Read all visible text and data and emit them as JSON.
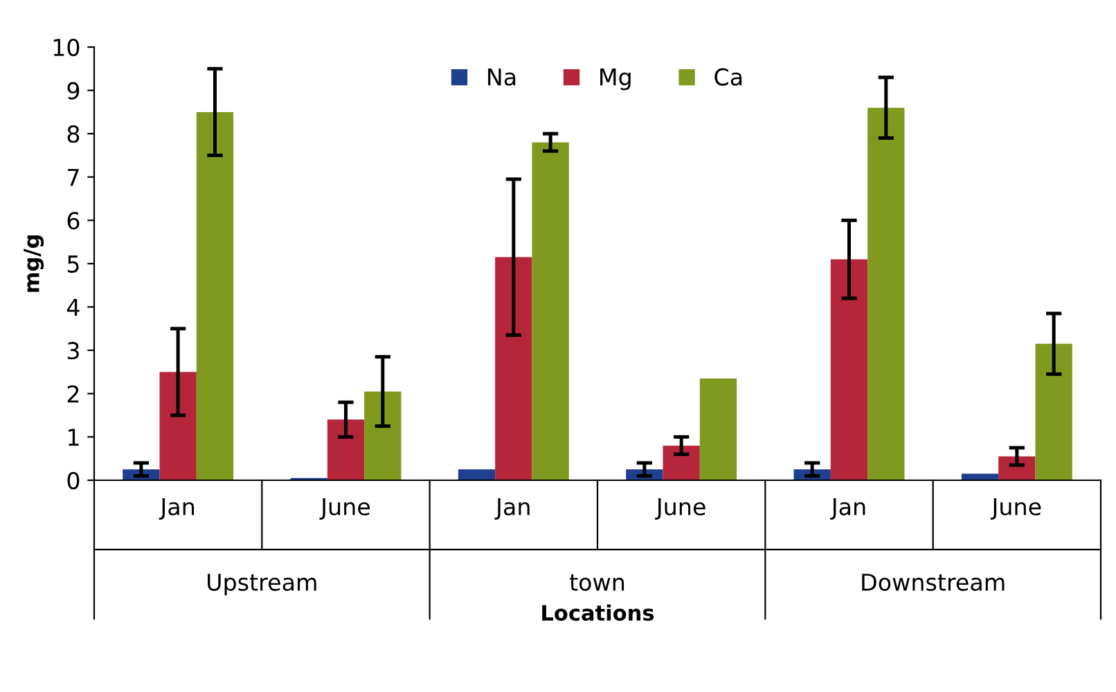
{
  "chart_data": {
    "type": "bar",
    "xlabel": "Locations",
    "ylabel": "mg/g",
    "categories": [
      "Jan",
      "June",
      "Jan",
      "June",
      "Jan",
      "June"
    ],
    "annotations": [
      "Upstream",
      "town",
      "Downstream"
    ],
    "series": [
      {
        "name": "Na",
        "color": "#1f3f8f",
        "values": [
          0.25,
          0.05,
          0.25,
          0.25,
          0.25,
          0.15
        ],
        "errors": [
          0.15,
          null,
          null,
          0.15,
          0.15,
          null
        ]
      },
      {
        "name": "Mg",
        "color": "#b5263a",
        "values": [
          2.5,
          1.4,
          5.15,
          0.8,
          5.1,
          0.55
        ],
        "errors": [
          1.0,
          0.4,
          1.8,
          0.2,
          0.9,
          0.2
        ]
      },
      {
        "name": "Ca",
        "color": "#7f9a1e",
        "values": [
          8.5,
          2.05,
          7.8,
          2.35,
          8.6,
          3.15
        ],
        "errors": [
          1.0,
          0.8,
          0.2,
          null,
          0.7,
          0.7
        ]
      }
    ],
    "ylim": [
      0,
      10
    ],
    "yticks": [
      0,
      1,
      2,
      3,
      4,
      5,
      6,
      7,
      8,
      9,
      10
    ],
    "grid": false,
    "legend": "top"
  }
}
